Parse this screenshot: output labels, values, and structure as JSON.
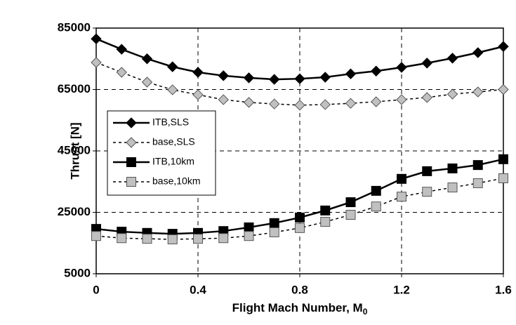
{
  "chart_data": {
    "type": "line",
    "xlabel": "Flight Mach Number, M",
    "xlabel_subscript": "0",
    "ylabel": "Thrust [N]",
    "x": [
      0,
      0.1,
      0.2,
      0.3,
      0.4,
      0.5,
      0.6,
      0.7,
      0.8,
      0.9,
      1.0,
      1.1,
      1.2,
      1.3,
      1.4,
      1.5,
      1.6
    ],
    "xlim": [
      0,
      1.6
    ],
    "xticks": [
      0,
      0.4,
      0.8,
      1.2,
      1.6
    ],
    "ylim": [
      5000,
      85000
    ],
    "yticks": [
      5000,
      25000,
      45000,
      65000,
      85000
    ],
    "grid": true,
    "legend": "left",
    "series": [
      {
        "name": "ITB,SLS",
        "color": "#000000",
        "marker": "diamond",
        "dash": false,
        "values": [
          81500,
          78100,
          75000,
          72400,
          70600,
          69500,
          68800,
          68300,
          68500,
          69000,
          70100,
          71000,
          72200,
          73600,
          75200,
          77000,
          79000
        ]
      },
      {
        "name": "base,SLS",
        "color": "#c0c0c0",
        "marker": "diamond",
        "dash": true,
        "values": [
          73800,
          70600,
          67400,
          64900,
          63300,
          61700,
          60800,
          60300,
          59900,
          60100,
          60500,
          61000,
          61700,
          62400,
          63500,
          64200,
          65000
        ]
      },
      {
        "name": "ITB,10km",
        "color": "#000000",
        "marker": "square",
        "dash": false,
        "values": [
          19600,
          18700,
          18300,
          18000,
          18300,
          18900,
          20100,
          21500,
          23300,
          25600,
          28300,
          32000,
          35900,
          38400,
          39300,
          40400,
          42300
        ]
      },
      {
        "name": "base,10km",
        "color": "#c0c0c0",
        "marker": "square",
        "dash": true,
        "values": [
          17300,
          16600,
          16400,
          16200,
          16400,
          16600,
          17300,
          18500,
          19900,
          21900,
          24200,
          26900,
          30100,
          31700,
          33100,
          34500,
          36100
        ]
      }
    ]
  }
}
